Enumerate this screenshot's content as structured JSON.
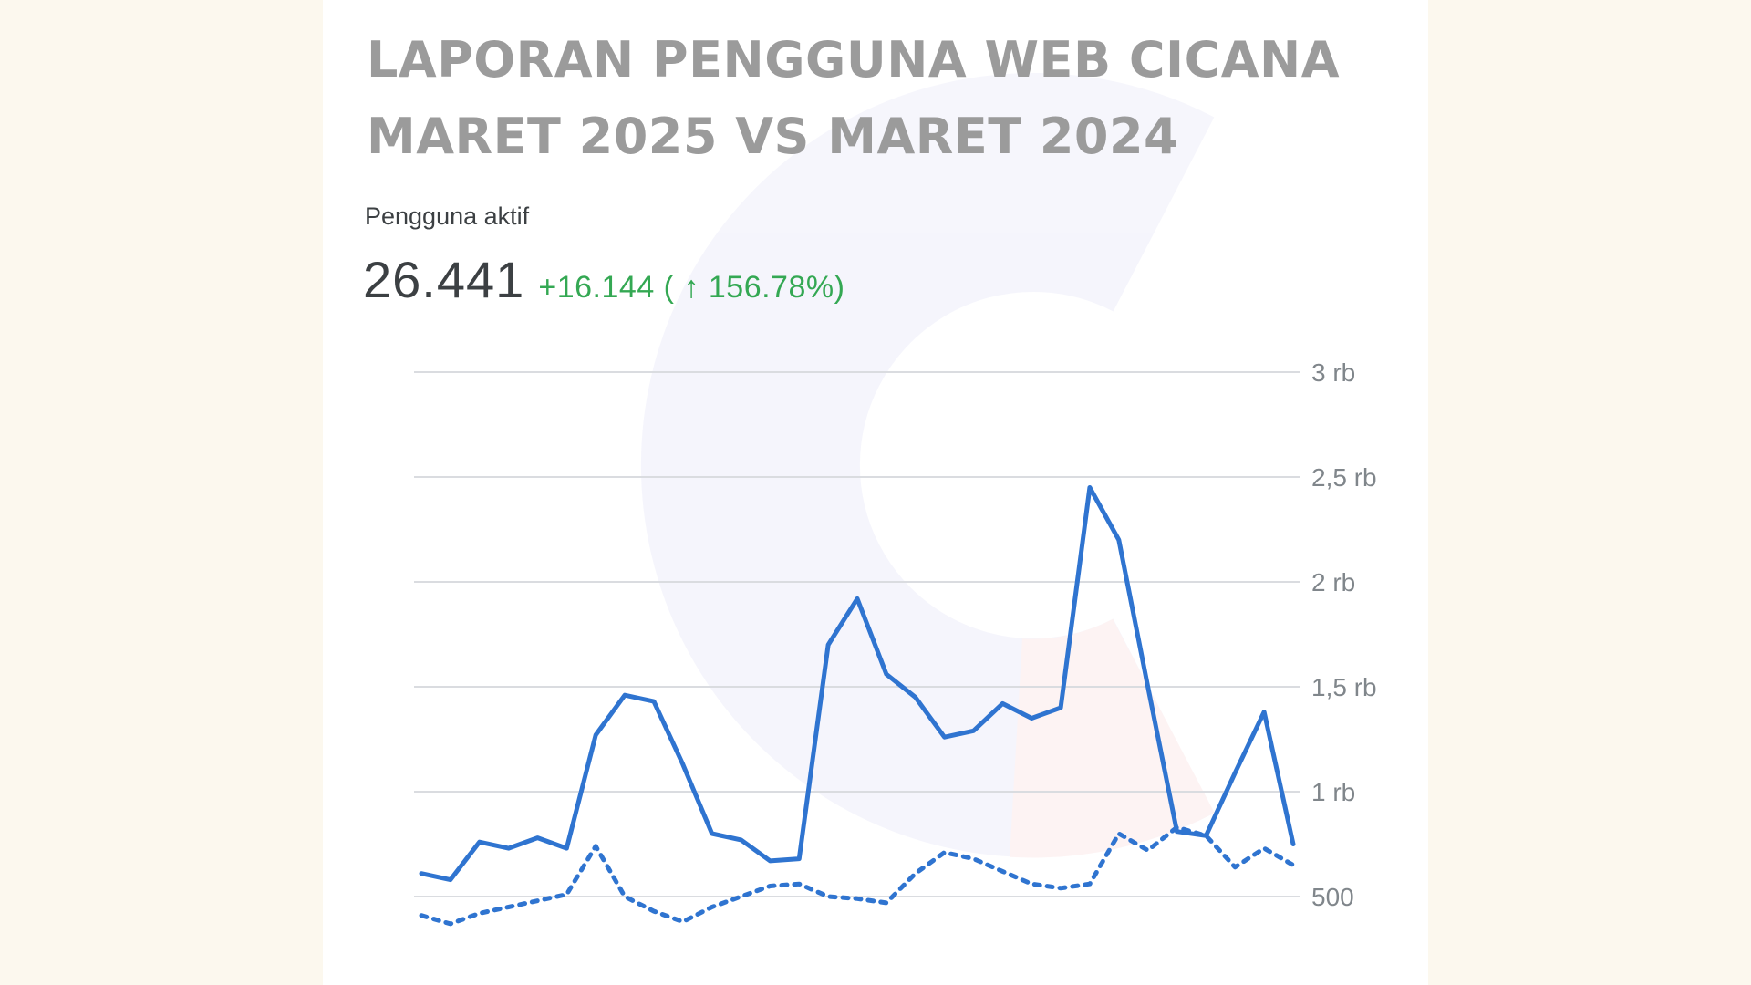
{
  "title": [
    "LAPORAN PENGGUNA WEB CICANA",
    "MARET 2025 VS MARET 2024"
  ],
  "metric": {
    "label": "Pengguna aktif",
    "value": "26.441",
    "change": "+16.144 ( ↑ 156.78%)"
  },
  "colors": {
    "line_current": "#2f74d0",
    "line_previous": "#2f74d0",
    "positive": "#34a853",
    "title": "#9b9b9b"
  },
  "chart_data": {
    "type": "line",
    "title": "",
    "xlabel": "",
    "ylabel": "",
    "x": [
      1,
      2,
      3,
      4,
      5,
      6,
      7,
      8,
      9,
      10,
      11,
      12,
      13,
      14,
      15,
      16,
      17,
      18,
      19,
      20,
      21,
      22,
      23,
      24,
      25,
      26,
      27,
      28,
      29,
      30,
      31
    ],
    "ylim": [
      0,
      3000
    ],
    "yticks": [
      500,
      1000,
      1500,
      2000,
      2500,
      3000
    ],
    "ytick_labels": [
      "500",
      "1 rb",
      "1,5 rb",
      "2 rb",
      "2,5 rb",
      "3 rb"
    ],
    "grid": true,
    "legend": "none",
    "series": [
      {
        "style": "solid",
        "values": [
          610,
          580,
          760,
          730,
          780,
          730,
          1270,
          1460,
          1430,
          1130,
          800,
          770,
          670,
          680,
          1700,
          1920,
          1560,
          1450,
          1260,
          1290,
          1420,
          1350,
          1400,
          2450,
          2200,
          1500,
          810,
          790,
          1090,
          1380,
          750
        ]
      },
      {
        "style": "dotted",
        "values": [
          410,
          370,
          420,
          450,
          480,
          510,
          740,
          500,
          430,
          380,
          450,
          500,
          550,
          560,
          500,
          490,
          470,
          610,
          710,
          680,
          620,
          560,
          540,
          560,
          800,
          720,
          830,
          790,
          640,
          730,
          650
        ]
      }
    ]
  }
}
